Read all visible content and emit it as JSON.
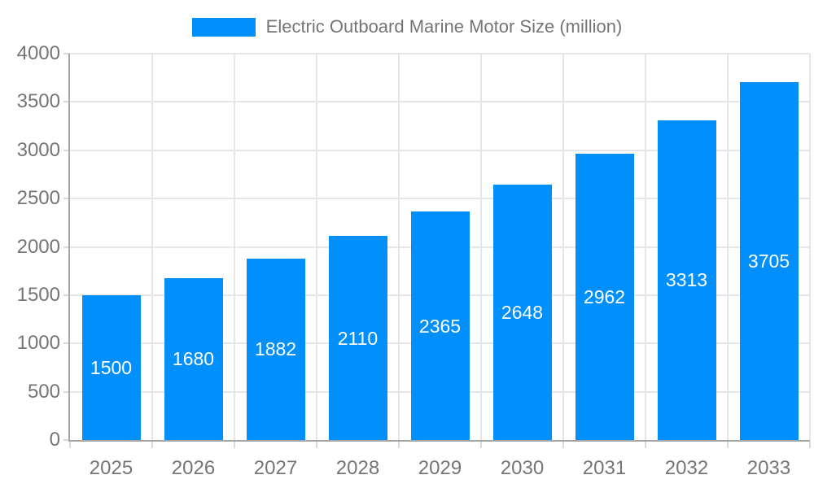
{
  "legend": {
    "label": "Electric Outboard Marine Motor Size (million)"
  },
  "colors": {
    "bar": "#008FFB",
    "grid": "#e6e6e6",
    "axis": "#a6a6a6",
    "tick": "#d9d9d9",
    "axis_label": "#757575",
    "value_label": "#ffffff",
    "background": "#ffffff"
  },
  "chart_data": {
    "type": "bar",
    "title": "Electric Outboard Marine Motor Size (million)",
    "categories": [
      "2025",
      "2026",
      "2027",
      "2028",
      "2029",
      "2030",
      "2031",
      "2032",
      "2033"
    ],
    "values": [
      1500,
      1680,
      1882,
      2110,
      2365,
      2648,
      2962,
      3313,
      3705
    ],
    "xlabel": "",
    "ylabel": "",
    "ylim": [
      0,
      4000
    ],
    "ytick_step": 500,
    "yticks": [
      0,
      500,
      1000,
      1500,
      2000,
      2500,
      3000,
      3500,
      4000
    ],
    "grid": "horizontal-and-vertical",
    "legend_position": "top",
    "value_label_position": "inside-center",
    "bar_color": "#008FFB"
  }
}
